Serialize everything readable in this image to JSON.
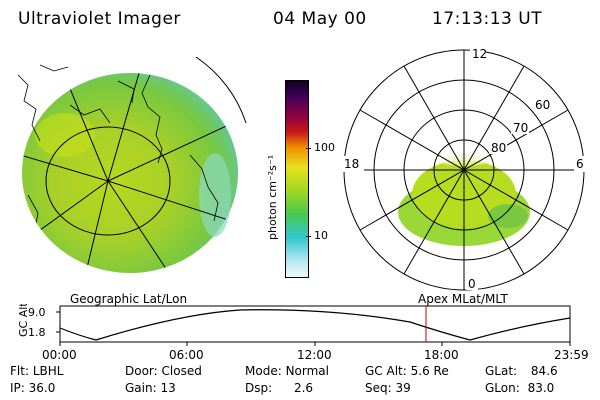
{
  "header": {
    "instrument": "Ultraviolet Imager",
    "date": "04 May 00",
    "time": "17:13:13 UT"
  },
  "colorbar": {
    "unit_label": "photon cm⁻²s⁻¹",
    "ticks": [
      "100",
      "10"
    ]
  },
  "polar_plot": {
    "mlt_labels": [
      "12",
      "18",
      "6",
      "0"
    ],
    "lat_labels": [
      "60",
      "70",
      "80"
    ]
  },
  "timeline": {
    "left_title": "Geographic Lat/Lon",
    "right_title": "Apex MLat/MLT",
    "y_label": "GC Alt",
    "y_ticks": [
      "9.0",
      "1.8"
    ],
    "x_ticks": [
      "00:00",
      "06:00",
      "12:00",
      "18:00",
      "23:59"
    ],
    "marker_color": "#cc0000"
  },
  "status": {
    "row1": [
      {
        "label": "Flt:",
        "value": "LBHL"
      },
      {
        "label": "Door:",
        "value": "Closed"
      },
      {
        "label": "Mode:",
        "value": "Normal"
      },
      {
        "label": "GC Alt:",
        "value": "5.6 Re"
      },
      {
        "label": "GLat:",
        "value": "84.6"
      }
    ],
    "row2": [
      {
        "label": "IP:",
        "value": "36.0"
      },
      {
        "label": "Gain:",
        "value": "13"
      },
      {
        "label": "Dsp:",
        "value": "2.6"
      },
      {
        "label": "Seq:",
        "value": "39"
      },
      {
        "label": "GLon:",
        "value": "83.0"
      }
    ]
  }
}
